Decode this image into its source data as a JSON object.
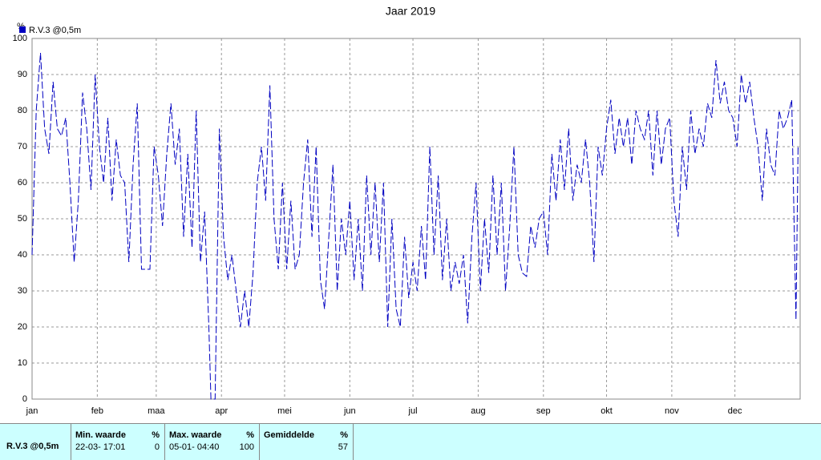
{
  "chart_data": {
    "type": "line",
    "title": "Jaar 2019",
    "ylabel": "%",
    "x": [
      0,
      2,
      4,
      6,
      8,
      10,
      12,
      14,
      16,
      18,
      20,
      22,
      24,
      26,
      28,
      30,
      32,
      34,
      36,
      38,
      40,
      42,
      44,
      46,
      48,
      50,
      52,
      54,
      56,
      58,
      60,
      62,
      64,
      66,
      68,
      70,
      72,
      74,
      76,
      78,
      80,
      82,
      84,
      85,
      87,
      89,
      91,
      93,
      95,
      97,
      99,
      101,
      103,
      105,
      107,
      109,
      111,
      113,
      115,
      117,
      119,
      121,
      123,
      125,
      127,
      129,
      131,
      133,
      135,
      137,
      139,
      141,
      143,
      145,
      147,
      149,
      151,
      153,
      155,
      157,
      159,
      161,
      163,
      165,
      167,
      169,
      171,
      173,
      175,
      177,
      179,
      181,
      183,
      185,
      187,
      189,
      191,
      193,
      195,
      197,
      199,
      201,
      203,
      205,
      207,
      209,
      211,
      213,
      215,
      217,
      219,
      221,
      223,
      225,
      227,
      229,
      231,
      233,
      235,
      237,
      239,
      241,
      243,
      245,
      247,
      249,
      251,
      253,
      255,
      257,
      259,
      261,
      263,
      265,
      267,
      269,
      271,
      273,
      275,
      277,
      279,
      281,
      283,
      285,
      287,
      289,
      291,
      293,
      295,
      297,
      299,
      301,
      303,
      305,
      307,
      309,
      311,
      313,
      315,
      317,
      319,
      321,
      323,
      325,
      327,
      329,
      331,
      333,
      335,
      337,
      339,
      341,
      343,
      345,
      347,
      349,
      351,
      353,
      355,
      357,
      359,
      361,
      363,
      364
    ],
    "series": [
      {
        "name": "R.V.3 @0,5m",
        "color": "#0000c0",
        "values": [
          40,
          80,
          96,
          75,
          68,
          88,
          75,
          73,
          78,
          60,
          38,
          55,
          85,
          75,
          58,
          90,
          70,
          60,
          78,
          55,
          72,
          62,
          60,
          38,
          65,
          82,
          36,
          36,
          36,
          70,
          62,
          48,
          68,
          82,
          65,
          75,
          45,
          68,
          42,
          80,
          38,
          52,
          20,
          0,
          0,
          75,
          45,
          33,
          40,
          30,
          20,
          30,
          20,
          35,
          60,
          70,
          55,
          87,
          50,
          36,
          60,
          36,
          55,
          36,
          40,
          60,
          72,
          45,
          70,
          33,
          25,
          45,
          65,
          30,
          50,
          40,
          55,
          33,
          50,
          30,
          62,
          40,
          60,
          38,
          60,
          20,
          50,
          25,
          20,
          45,
          28,
          38,
          30,
          48,
          33,
          70,
          40,
          62,
          33,
          50,
          30,
          38,
          32,
          40,
          21,
          45,
          60,
          30,
          50,
          35,
          62,
          40,
          60,
          30,
          48,
          70,
          40,
          35,
          34,
          48,
          42,
          50,
          52,
          40,
          68,
          55,
          72,
          58,
          75,
          55,
          65,
          60,
          72,
          60,
          38,
          70,
          62,
          75,
          83,
          68,
          78,
          70,
          78,
          65,
          80,
          75,
          72,
          80,
          62,
          80,
          65,
          75,
          78,
          55,
          45,
          70,
          58,
          80,
          68,
          75,
          70,
          82,
          78,
          94,
          82,
          88,
          80,
          78,
          70,
          90,
          82,
          88,
          78,
          70,
          55,
          75,
          65,
          62,
          80,
          75,
          78,
          83,
          22,
          70
        ]
      }
    ],
    "xlim": [
      0,
      365
    ],
    "xticks": [
      {
        "value": 0,
        "label": "jan"
      },
      {
        "value": 31,
        "label": "feb"
      },
      {
        "value": 59,
        "label": "maa"
      },
      {
        "value": 90,
        "label": "apr"
      },
      {
        "value": 120,
        "label": "mei"
      },
      {
        "value": 151,
        "label": "jun"
      },
      {
        "value": 181,
        "label": "jul"
      },
      {
        "value": 212,
        "label": "aug"
      },
      {
        "value": 243,
        "label": "sep"
      },
      {
        "value": 273,
        "label": "okt"
      },
      {
        "value": 304,
        "label": "nov"
      },
      {
        "value": 334,
        "label": "dec"
      }
    ],
    "ylim": [
      0,
      100
    ],
    "yticks": [
      0,
      10,
      20,
      30,
      40,
      50,
      60,
      70,
      80,
      90,
      100
    ],
    "grid": true,
    "legend": "top-left"
  },
  "stats": {
    "station": "R.V.3 @0,5m",
    "columns": [
      {
        "title": "Min. waarde",
        "unit": "%",
        "time": "22-03- 17:01",
        "value": 0
      },
      {
        "title": "Max. waarde",
        "unit": "%",
        "time": "05-01- 04:40",
        "value": 100
      },
      {
        "title": "Gemiddelde",
        "unit": "%",
        "value": 57
      }
    ]
  }
}
